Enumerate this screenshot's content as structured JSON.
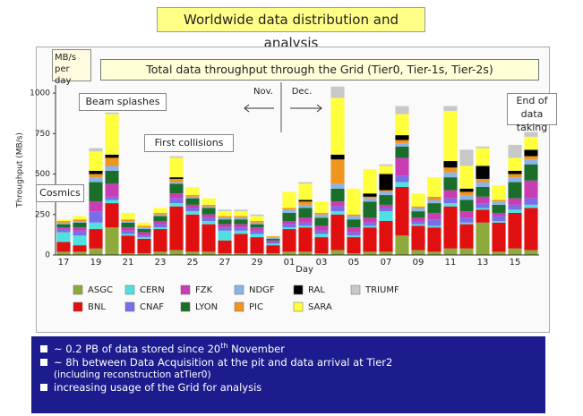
{
  "header": {
    "title": "Worldwide data distribution and analysis"
  },
  "chart_data": {
    "type": "stacked_bar",
    "title": "Total data throughput through the Grid (Tier0, Tier-1s, Tier-2s)",
    "unit_note": "MB/s per day",
    "y_label": "Throughput (MB/s)",
    "x_label": "Day",
    "annotations": [
      "Beam splashes",
      "First collisions",
      "Cosmics",
      "Nov.",
      "Dec.",
      "End of data taking"
    ],
    "categories": [
      "17",
      null,
      "19",
      null,
      "21",
      null,
      "23",
      null,
      "25",
      null,
      "27",
      null,
      "29",
      null,
      "01",
      null,
      "03",
      null,
      "05",
      null,
      "07",
      null,
      "09",
      null,
      "11",
      null,
      "13",
      null,
      "15",
      null
    ],
    "ylim": [
      0,
      1050
    ],
    "yticks": [
      0,
      250,
      500,
      750,
      1000
    ],
    "series": [
      {
        "name": "ASGC",
        "color": "#8faa3c",
        "values": [
          20,
          20,
          40,
          170,
          10,
          10,
          20,
          30,
          20,
          20,
          10,
          10,
          10,
          10,
          20,
          20,
          10,
          30,
          10,
          20,
          20,
          120,
          30,
          20,
          40,
          40,
          200,
          20,
          40,
          30
        ]
      },
      {
        "name": "BNL",
        "color": "#e01010",
        "values": [
          60,
          40,
          120,
          150,
          110,
          90,
          140,
          270,
          230,
          170,
          80,
          120,
          100,
          50,
          140,
          150,
          100,
          220,
          100,
          150,
          190,
          300,
          150,
          150,
          260,
          150,
          80,
          180,
          220,
          260
        ]
      },
      {
        "name": "CERN",
        "color": "#4fe0e0",
        "values": [
          60,
          60,
          40,
          20,
          10,
          10,
          10,
          20,
          20,
          20,
          60,
          20,
          20,
          10,
          10,
          10,
          20,
          20,
          10,
          10,
          60,
          30,
          10,
          10,
          20,
          10,
          10,
          10,
          20,
          20
        ]
      },
      {
        "name": "CNAF",
        "color": "#7a6ee6",
        "values": [
          20,
          30,
          70,
          20,
          20,
          10,
          20,
          30,
          20,
          20,
          20,
          20,
          20,
          10,
          20,
          20,
          20,
          30,
          20,
          20,
          20,
          40,
          20,
          40,
          30,
          30,
          30,
          30,
          30,
          40
        ]
      },
      {
        "name": "FZK",
        "color": "#c83cb4",
        "values": [
          10,
          20,
          60,
          80,
          20,
          20,
          20,
          30,
          20,
          20,
          20,
          20,
          20,
          10,
          20,
          30,
          30,
          30,
          30,
          30,
          20,
          110,
          20,
          40,
          50,
          40,
          40,
          20,
          40,
          110
        ]
      },
      {
        "name": "LYON",
        "color": "#1a6e2a",
        "values": [
          20,
          30,
          120,
          80,
          30,
          20,
          30,
          60,
          40,
          40,
          30,
          30,
          20,
          10,
          50,
          60,
          50,
          80,
          50,
          100,
          60,
          70,
          40,
          60,
          80,
          70,
          60,
          50,
          100,
          100
        ]
      },
      {
        "name": "NDGF",
        "color": "#8cb4e6",
        "values": [
          10,
          10,
          30,
          30,
          10,
          10,
          10,
          10,
          10,
          10,
          10,
          10,
          10,
          10,
          20,
          20,
          20,
          30,
          20,
          20,
          20,
          20,
          20,
          20,
          30,
          30,
          30,
          20,
          30,
          30
        ]
      },
      {
        "name": "PIC",
        "color": "#f0961e",
        "values": [
          10,
          10,
          20,
          50,
          10,
          10,
          10,
          20,
          10,
          10,
          10,
          10,
          10,
          5,
          10,
          20,
          10,
          150,
          10,
          10,
          10,
          20,
          10,
          20,
          30,
          20,
          20,
          10,
          20,
          20
        ]
      },
      {
        "name": "RAL",
        "color": "#000000",
        "values": [
          0,
          0,
          20,
          20,
          0,
          0,
          0,
          10,
          0,
          0,
          0,
          0,
          0,
          0,
          0,
          10,
          0,
          30,
          0,
          20,
          100,
          30,
          0,
          0,
          40,
          20,
          80,
          0,
          20,
          40
        ]
      },
      {
        "name": "SARA",
        "color": "#ffff3c",
        "values": [
          10,
          20,
          120,
          250,
          40,
          20,
          30,
          120,
          50,
          40,
          30,
          30,
          30,
          5,
          100,
          100,
          70,
          350,
          160,
          150,
          50,
          130,
          80,
          120,
          310,
          140,
          110,
          90,
          80,
          80
        ]
      },
      {
        "name": "TRIUMF",
        "color": "#c8c8c8",
        "values": [
          0,
          0,
          20,
          10,
          0,
          0,
          0,
          10,
          0,
          0,
          10,
          10,
          10,
          0,
          0,
          10,
          0,
          70,
          0,
          0,
          10,
          50,
          0,
          0,
          30,
          100,
          10,
          0,
          80,
          30
        ]
      }
    ]
  },
  "notes": [
    [
      "~ 0.2 PB of data stored since 20",
      "th",
      " November"
    ],
    [
      "~ 8h between Data Acquisition at the pit and data arrival at Tier2"
    ],
    [
      "(including reconstruction atTier0)"
    ],
    [
      "increasing usage of the Grid for analysis"
    ]
  ]
}
